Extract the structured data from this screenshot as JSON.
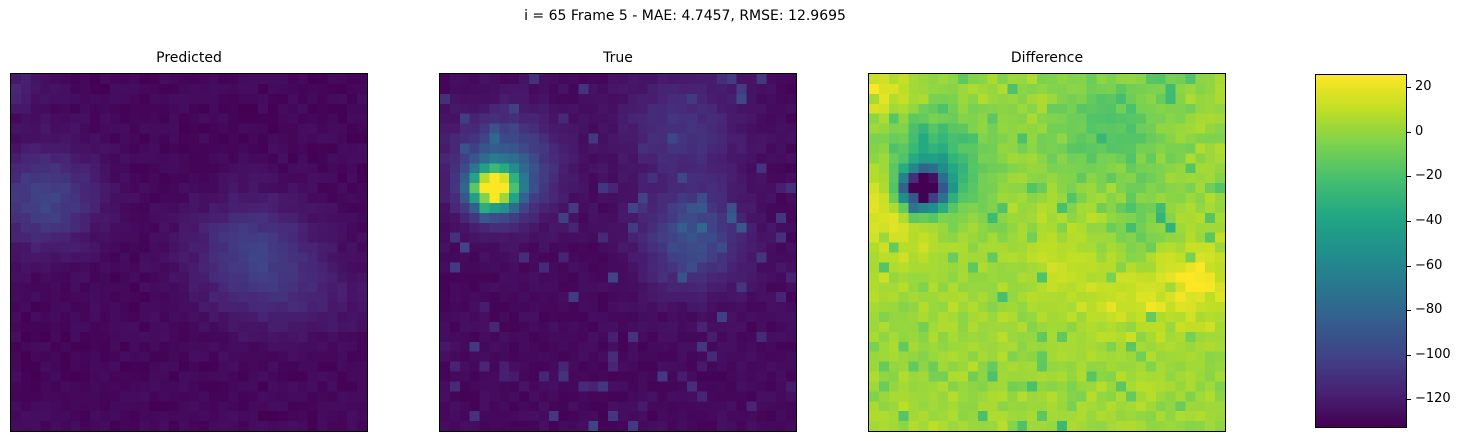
{
  "suptitle": "i = 65 Frame 5 - MAE: 4.7457, RMSE: 12.9695",
  "panels": [
    {
      "title": "Predicted"
    },
    {
      "title": "True"
    },
    {
      "title": "Difference"
    }
  ],
  "chart_data": [
    {
      "type": "heatmap",
      "title": "Predicted",
      "grid_size": [
        36,
        36
      ],
      "colormap": "viridis",
      "description_hotspots": [
        {
          "region": "left-middle",
          "value": -100
        },
        {
          "region": "center-right",
          "value": -105
        }
      ]
    },
    {
      "type": "heatmap",
      "title": "True",
      "grid_size": [
        36,
        36
      ],
      "colormap": "viridis",
      "description_hotspots": [
        {
          "region": "left-middle",
          "value": 20
        },
        {
          "region": "center-right",
          "value": -60
        }
      ]
    },
    {
      "type": "heatmap",
      "title": "Difference",
      "grid_size": [
        36,
        36
      ],
      "colormap": "viridis",
      "description_hotspots": [
        {
          "region": "left-middle",
          "value": -120
        },
        {
          "region": "right-middle",
          "value": 20
        }
      ]
    }
  ],
  "colorbar": {
    "colormap": "viridis",
    "vmin": -132,
    "vmax": 26,
    "ticks": [
      "20",
      "0",
      "−20",
      "−40",
      "−60",
      "−80",
      "−100",
      "−120"
    ],
    "tick_values": [
      20,
      0,
      -20,
      -40,
      -60,
      -80,
      -100,
      -120
    ]
  }
}
